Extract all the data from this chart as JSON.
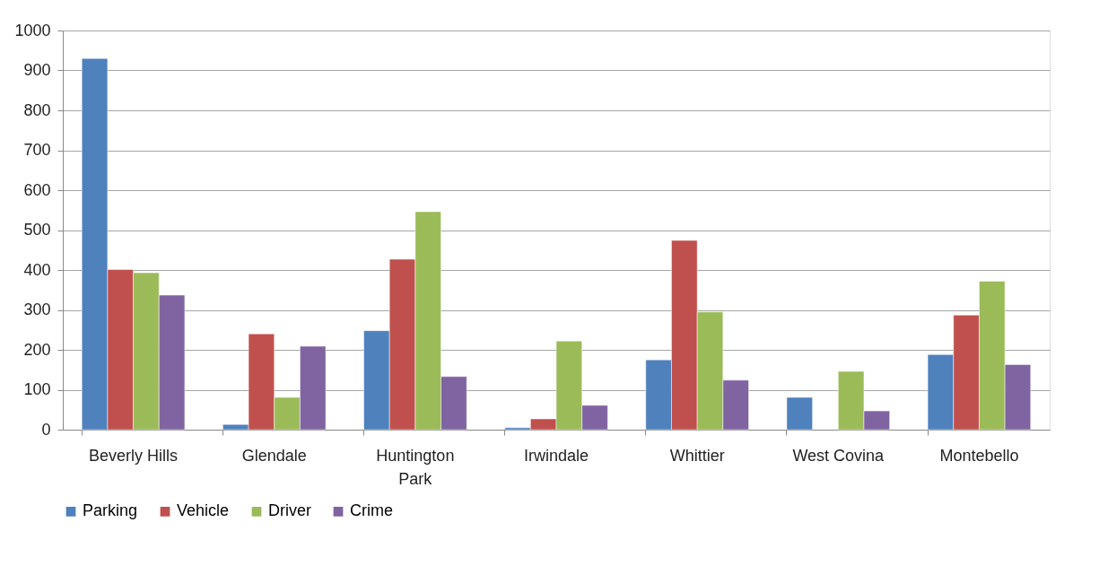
{
  "chart_data": {
    "type": "bar",
    "categories": [
      "Beverly Hills",
      "Glendale",
      "Huntington Park",
      "Irwindale",
      "Whittier",
      "West Covina",
      "Montebello"
    ],
    "series": [
      {
        "name": "Parking",
        "color": "#4f81bd",
        "values": [
          930,
          13,
          248,
          5,
          175,
          81,
          188
        ]
      },
      {
        "name": "Vehicle",
        "color": "#c0504d",
        "values": [
          401,
          240,
          427,
          27,
          474,
          null,
          287
        ]
      },
      {
        "name": "Driver",
        "color": "#9bbb59",
        "values": [
          393,
          81,
          546,
          222,
          295,
          146,
          372
        ]
      },
      {
        "name": "Crime",
        "color": "#8064a2",
        "values": [
          337,
          209,
          133,
          61,
          124,
          47,
          163
        ]
      }
    ],
    "ylim": [
      0,
      1000
    ],
    "yticks": [
      0,
      100,
      200,
      300,
      400,
      500,
      600,
      700,
      800,
      900,
      1000
    ],
    "grid": "y",
    "legend": "bottom"
  }
}
